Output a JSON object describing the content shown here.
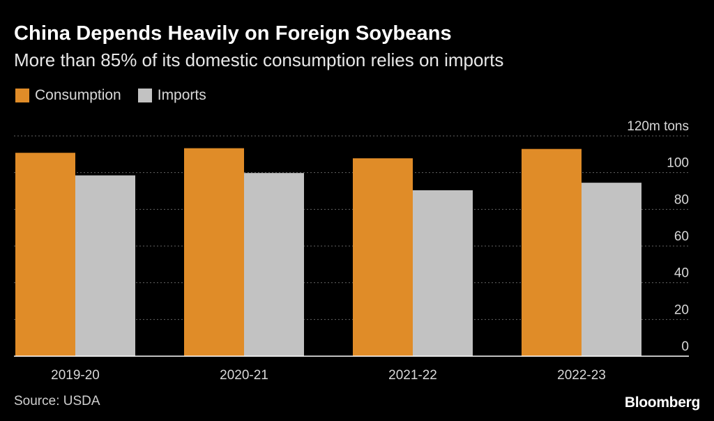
{
  "header": {
    "title": "China Depends Heavily on Foreign Soybeans",
    "subtitle": "More than 85% of its domestic consumption relies on imports"
  },
  "footer": {
    "source": "Source: USDA",
    "brand": "Bloomberg"
  },
  "colors": {
    "background": "#000000",
    "consumption": "#e08c28",
    "imports": "#c2c2c2",
    "gridline": "#666666"
  },
  "chart_data": {
    "type": "bar",
    "categories": [
      "2019-20",
      "2020-21",
      "2021-22",
      "2022-23"
    ],
    "series": [
      {
        "name": "Consumption",
        "values": [
          110.8,
          113.3,
          107.8,
          112.9
        ]
      },
      {
        "name": "Imports",
        "values": [
          98.5,
          99.8,
          90.4,
          94.5
        ]
      }
    ],
    "ylim": [
      0,
      120
    ],
    "yticks": [
      0,
      20,
      40,
      60,
      80,
      100,
      120
    ],
    "ytick_labels": [
      "0",
      "20",
      "40",
      "60",
      "80",
      "100",
      "120m tons"
    ],
    "axis_position": "right",
    "legend_position": "top-left",
    "grid": true,
    "xlabel": "",
    "ylabel": ""
  }
}
